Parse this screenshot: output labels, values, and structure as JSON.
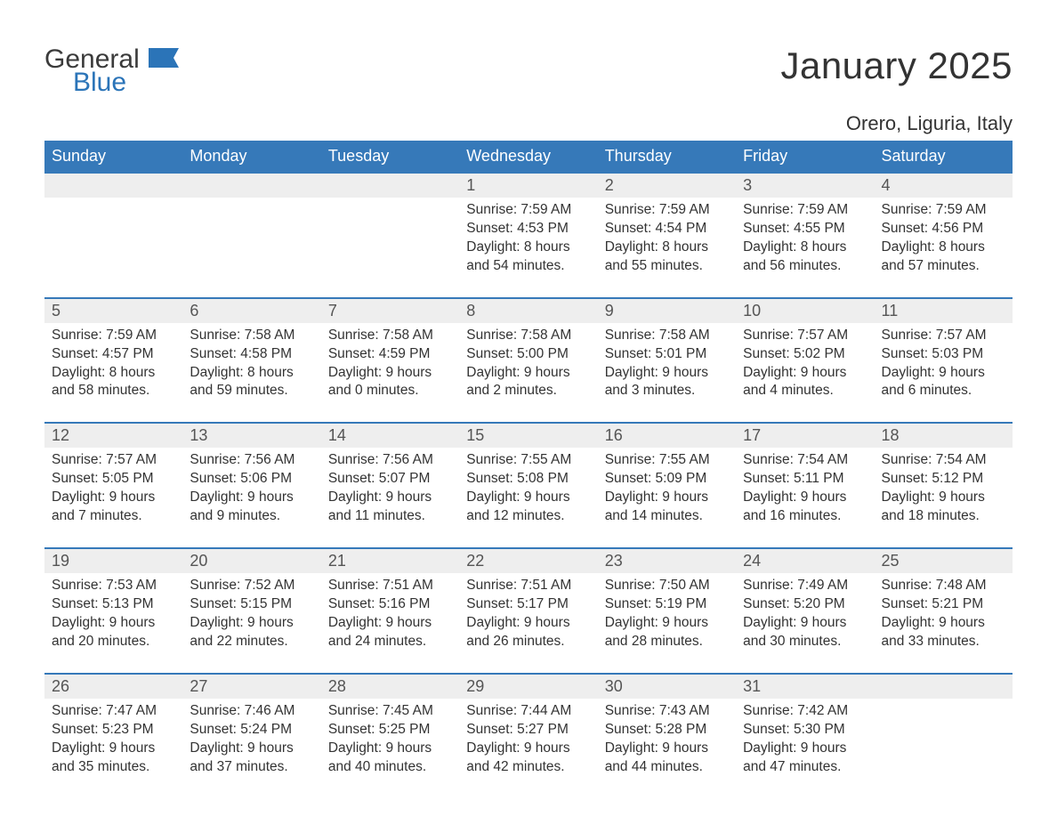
{
  "logo": {
    "general": "General",
    "blue": "Blue"
  },
  "title": "January 2025",
  "location": "Orero, Liguria, Italy",
  "colors": {
    "header_bg": "#3679b9",
    "header_text": "#ffffff",
    "day_number_bg": "#eeeeee",
    "row_border": "#3679b9",
    "body_text": "#333333",
    "logo_gray": "#3b3b3b",
    "logo_blue": "#2b74b8"
  },
  "typography": {
    "title_fontsize": 42,
    "location_fontsize": 22,
    "weekday_fontsize": 18,
    "daynum_fontsize": 18,
    "body_fontsize": 15.5
  },
  "weekdays": [
    "Sunday",
    "Monday",
    "Tuesday",
    "Wednesday",
    "Thursday",
    "Friday",
    "Saturday"
  ],
  "weeks": [
    [
      null,
      null,
      null,
      {
        "n": "1",
        "sunrise": "7:59 AM",
        "sunset": "4:53 PM",
        "dh": "8",
        "dm": "54"
      },
      {
        "n": "2",
        "sunrise": "7:59 AM",
        "sunset": "4:54 PM",
        "dh": "8",
        "dm": "55"
      },
      {
        "n": "3",
        "sunrise": "7:59 AM",
        "sunset": "4:55 PM",
        "dh": "8",
        "dm": "56"
      },
      {
        "n": "4",
        "sunrise": "7:59 AM",
        "sunset": "4:56 PM",
        "dh": "8",
        "dm": "57"
      }
    ],
    [
      {
        "n": "5",
        "sunrise": "7:59 AM",
        "sunset": "4:57 PM",
        "dh": "8",
        "dm": "58"
      },
      {
        "n": "6",
        "sunrise": "7:58 AM",
        "sunset": "4:58 PM",
        "dh": "8",
        "dm": "59"
      },
      {
        "n": "7",
        "sunrise": "7:58 AM",
        "sunset": "4:59 PM",
        "dh": "9",
        "dm": "0"
      },
      {
        "n": "8",
        "sunrise": "7:58 AM",
        "sunset": "5:00 PM",
        "dh": "9",
        "dm": "2"
      },
      {
        "n": "9",
        "sunrise": "7:58 AM",
        "sunset": "5:01 PM",
        "dh": "9",
        "dm": "3"
      },
      {
        "n": "10",
        "sunrise": "7:57 AM",
        "sunset": "5:02 PM",
        "dh": "9",
        "dm": "4"
      },
      {
        "n": "11",
        "sunrise": "7:57 AM",
        "sunset": "5:03 PM",
        "dh": "9",
        "dm": "6"
      }
    ],
    [
      {
        "n": "12",
        "sunrise": "7:57 AM",
        "sunset": "5:05 PM",
        "dh": "9",
        "dm": "7"
      },
      {
        "n": "13",
        "sunrise": "7:56 AM",
        "sunset": "5:06 PM",
        "dh": "9",
        "dm": "9"
      },
      {
        "n": "14",
        "sunrise": "7:56 AM",
        "sunset": "5:07 PM",
        "dh": "9",
        "dm": "11"
      },
      {
        "n": "15",
        "sunrise": "7:55 AM",
        "sunset": "5:08 PM",
        "dh": "9",
        "dm": "12"
      },
      {
        "n": "16",
        "sunrise": "7:55 AM",
        "sunset": "5:09 PM",
        "dh": "9",
        "dm": "14"
      },
      {
        "n": "17",
        "sunrise": "7:54 AM",
        "sunset": "5:11 PM",
        "dh": "9",
        "dm": "16"
      },
      {
        "n": "18",
        "sunrise": "7:54 AM",
        "sunset": "5:12 PM",
        "dh": "9",
        "dm": "18"
      }
    ],
    [
      {
        "n": "19",
        "sunrise": "7:53 AM",
        "sunset": "5:13 PM",
        "dh": "9",
        "dm": "20"
      },
      {
        "n": "20",
        "sunrise": "7:52 AM",
        "sunset": "5:15 PM",
        "dh": "9",
        "dm": "22"
      },
      {
        "n": "21",
        "sunrise": "7:51 AM",
        "sunset": "5:16 PM",
        "dh": "9",
        "dm": "24"
      },
      {
        "n": "22",
        "sunrise": "7:51 AM",
        "sunset": "5:17 PM",
        "dh": "9",
        "dm": "26"
      },
      {
        "n": "23",
        "sunrise": "7:50 AM",
        "sunset": "5:19 PM",
        "dh": "9",
        "dm": "28"
      },
      {
        "n": "24",
        "sunrise": "7:49 AM",
        "sunset": "5:20 PM",
        "dh": "9",
        "dm": "30"
      },
      {
        "n": "25",
        "sunrise": "7:48 AM",
        "sunset": "5:21 PM",
        "dh": "9",
        "dm": "33"
      }
    ],
    [
      {
        "n": "26",
        "sunrise": "7:47 AM",
        "sunset": "5:23 PM",
        "dh": "9",
        "dm": "35"
      },
      {
        "n": "27",
        "sunrise": "7:46 AM",
        "sunset": "5:24 PM",
        "dh": "9",
        "dm": "37"
      },
      {
        "n": "28",
        "sunrise": "7:45 AM",
        "sunset": "5:25 PM",
        "dh": "9",
        "dm": "40"
      },
      {
        "n": "29",
        "sunrise": "7:44 AM",
        "sunset": "5:27 PM",
        "dh": "9",
        "dm": "42"
      },
      {
        "n": "30",
        "sunrise": "7:43 AM",
        "sunset": "5:28 PM",
        "dh": "9",
        "dm": "44"
      },
      {
        "n": "31",
        "sunrise": "7:42 AM",
        "sunset": "5:30 PM",
        "dh": "9",
        "dm": "47"
      },
      null
    ]
  ],
  "labels": {
    "sunrise": "Sunrise: ",
    "sunset": "Sunset: ",
    "daylight1": "Daylight: ",
    "daylight2": " hours and ",
    "daylight3": " minutes."
  }
}
